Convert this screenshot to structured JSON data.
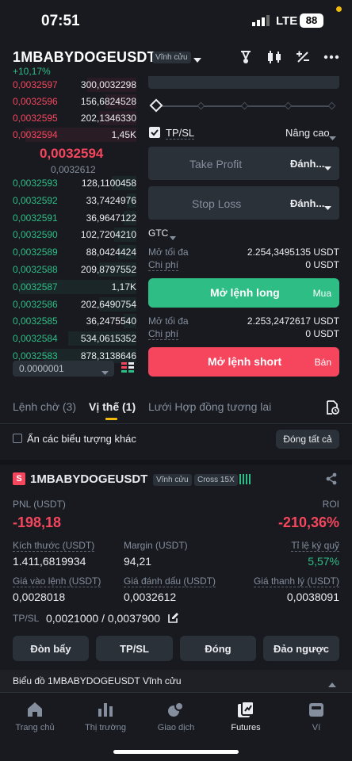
{
  "status_bar": {
    "time": "07:51",
    "network": "LTE",
    "battery": "88"
  },
  "header": {
    "symbol": "1MBABYDOGEUSDT",
    "contract_type": "Vĩnh cửu",
    "change": "+10,17%"
  },
  "orderbook": {
    "asks": [
      {
        "price": "0,0032597",
        "qty": "300,0032298",
        "depth": 0.4
      },
      {
        "price": "0,0032596",
        "qty": "156,6824528",
        "depth": 0.25
      },
      {
        "price": "0,0032595",
        "qty": "202,1346330",
        "depth": 0.3
      },
      {
        "price": "0,0032594",
        "qty": "1,45K",
        "depth": 0.9
      }
    ],
    "last_price": "0,0032594",
    "mark_price": "0,0032612",
    "bids": [
      {
        "price": "0,0032593",
        "qty": "128,1100458",
        "depth": 0.2
      },
      {
        "price": "0,0032592",
        "qty": "33,7424976",
        "depth": 0.08
      },
      {
        "price": "0,0032591",
        "qty": "36,9647122",
        "depth": 0.1
      },
      {
        "price": "0,0032590",
        "qty": "102,7204210",
        "depth": 0.18
      },
      {
        "price": "0,0032589",
        "qty": "88,0424424",
        "depth": 0.15
      },
      {
        "price": "0,0032588",
        "qty": "209,8797552",
        "depth": 0.3
      },
      {
        "price": "0,0032587",
        "qty": "1,17K",
        "depth": 0.95
      },
      {
        "price": "0,0032586",
        "qty": "202,6490754",
        "depth": 0.3
      },
      {
        "price": "0,0032585",
        "qty": "36,2475540",
        "depth": 0.1
      },
      {
        "price": "0,0032584",
        "qty": "534,0615352",
        "depth": 0.55
      },
      {
        "price": "0,0032583",
        "qty": "878,3138646",
        "depth": 0.75
      }
    ],
    "precision": "0.0000001"
  },
  "order_form": {
    "tpsl_label": "TP/SL",
    "advanced_label": "Nâng cao",
    "take_profit_label": "Take Profit",
    "stop_loss_label": "Stop Loss",
    "trigger_type": "Đánh...",
    "time_in_force": "GTC",
    "long": {
      "max_label": "Mở tối đa",
      "max_value": "2.254,3495135 USDT",
      "cost_label": "Chi phí",
      "cost_value": "0 USDT",
      "button": "Mở lệnh long",
      "side": "Mua"
    },
    "short": {
      "max_label": "Mở tối đa",
      "max_value": "2.253,2472617 USDT",
      "cost_label": "Chi phí",
      "cost_value": "0 USDT",
      "button": "Mở lệnh short",
      "side": "Bán"
    }
  },
  "tabs": [
    {
      "label": "Lệnh chờ (3)"
    },
    {
      "label": "Vị thế (1)"
    },
    {
      "label": "Lưới Hợp đồng tương lai"
    }
  ],
  "filters": {
    "hide_label": "Ẩn các biểu tượng khác",
    "close_all": "Đóng tất cả"
  },
  "position": {
    "side_badge": "S",
    "symbol": "1MBABYDOGEUSDT",
    "contract_type": "Vĩnh cửu",
    "margin_mode": "Cross 15X",
    "pnl_label": "PNL (USDT)",
    "pnl_value": "-198,18",
    "roi_label": "ROI",
    "roi_value": "-210,36%",
    "size_label": "Kích thước (USDT)",
    "size_value": "1.411,6819934",
    "margin_label": "Margin (USDT)",
    "margin_value": "94,21",
    "margin_ratio_label": "Tỉ lệ ký quỹ",
    "margin_ratio_value": "5,57%",
    "entry_label": "Giá vào lệnh (USDT)",
    "entry_value": "0,0028018",
    "mark_label": "Giá đánh dấu (USDT)",
    "mark_value": "0,0032612",
    "liq_label": "Giá thanh lý (USDT)",
    "liq_value": "0,0038091",
    "tpsl_label": "TP/SL",
    "tpsl_value": "0,0021000 / 0,0037900",
    "buttons": {
      "leverage": "Đòn bẩy",
      "tpsl": "TP/SL",
      "close": "Đóng",
      "reverse": "Đảo ngược"
    }
  },
  "chart_bar": {
    "label": "Biểu đồ 1MBABYDOGEUSDT Vĩnh cửu"
  },
  "bottom_nav": [
    {
      "label": "Trang chủ",
      "icon": "home-icon"
    },
    {
      "label": "Thị trường",
      "icon": "markets-icon"
    },
    {
      "label": "Giao dịch",
      "icon": "trade-icon"
    },
    {
      "label": "Futures",
      "icon": "futures-icon"
    },
    {
      "label": "Ví",
      "icon": "wallet-icon"
    }
  ],
  "colors": {
    "bg": "#181a20",
    "green": "#2ebd85",
    "red": "#f6465d",
    "accent": "#f0b90b"
  }
}
